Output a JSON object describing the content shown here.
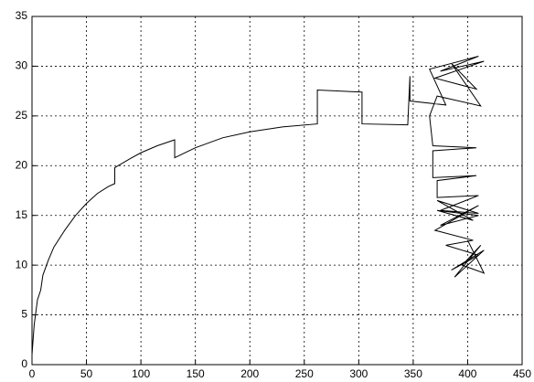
{
  "chart_data": {
    "type": "line",
    "x": [
      0,
      2,
      5,
      8,
      10,
      15,
      20,
      30,
      40,
      50,
      60,
      70,
      76,
      76,
      90,
      100,
      115,
      131,
      131,
      150,
      175,
      200,
      230,
      262,
      262,
      303,
      303,
      345,
      347,
      347,
      380,
      365,
      410,
      375,
      415,
      370,
      408,
      385,
      412,
      372,
      365,
      368,
      408,
      368,
      368,
      408,
      372,
      372,
      410,
      375,
      410,
      372,
      405,
      372,
      410,
      375,
      410,
      370,
      405,
      380,
      410,
      385,
      415,
      388,
      412,
      395,
      415,
      400
    ],
    "series": [
      {
        "color": "#000000",
        "values": [
          1,
          4,
          6.5,
          7.5,
          9,
          10.5,
          11.8,
          13.5,
          15,
          16.2,
          17.2,
          17.9,
          18.2,
          19.8,
          20.7,
          21.3,
          22,
          22.6,
          20.8,
          21.8,
          22.8,
          23.4,
          23.9,
          24.2,
          27.6,
          27.4,
          24.2,
          24.1,
          29,
          26.5,
          26.1,
          29.7,
          31,
          29.5,
          30.5,
          28.8,
          27.7,
          30.3,
          26,
          27,
          25,
          22,
          21.8,
          21.5,
          18.8,
          19,
          18.5,
          16.8,
          17,
          15.5,
          15.2,
          16.5,
          14.5,
          15.5,
          15,
          14,
          16,
          13.5,
          12.5,
          12,
          11,
          9.5,
          11.5,
          8.8,
          12,
          10,
          9.2,
          12.5
        ]
      }
    ],
    "xlim": [
      0,
      450
    ],
    "xticks": [
      0,
      50,
      100,
      150,
      200,
      250,
      300,
      350,
      400,
      450
    ],
    "ylim": [
      0,
      35
    ],
    "yticks": [
      0,
      5,
      10,
      15,
      20,
      25,
      30,
      35
    ],
    "grid": true
  }
}
